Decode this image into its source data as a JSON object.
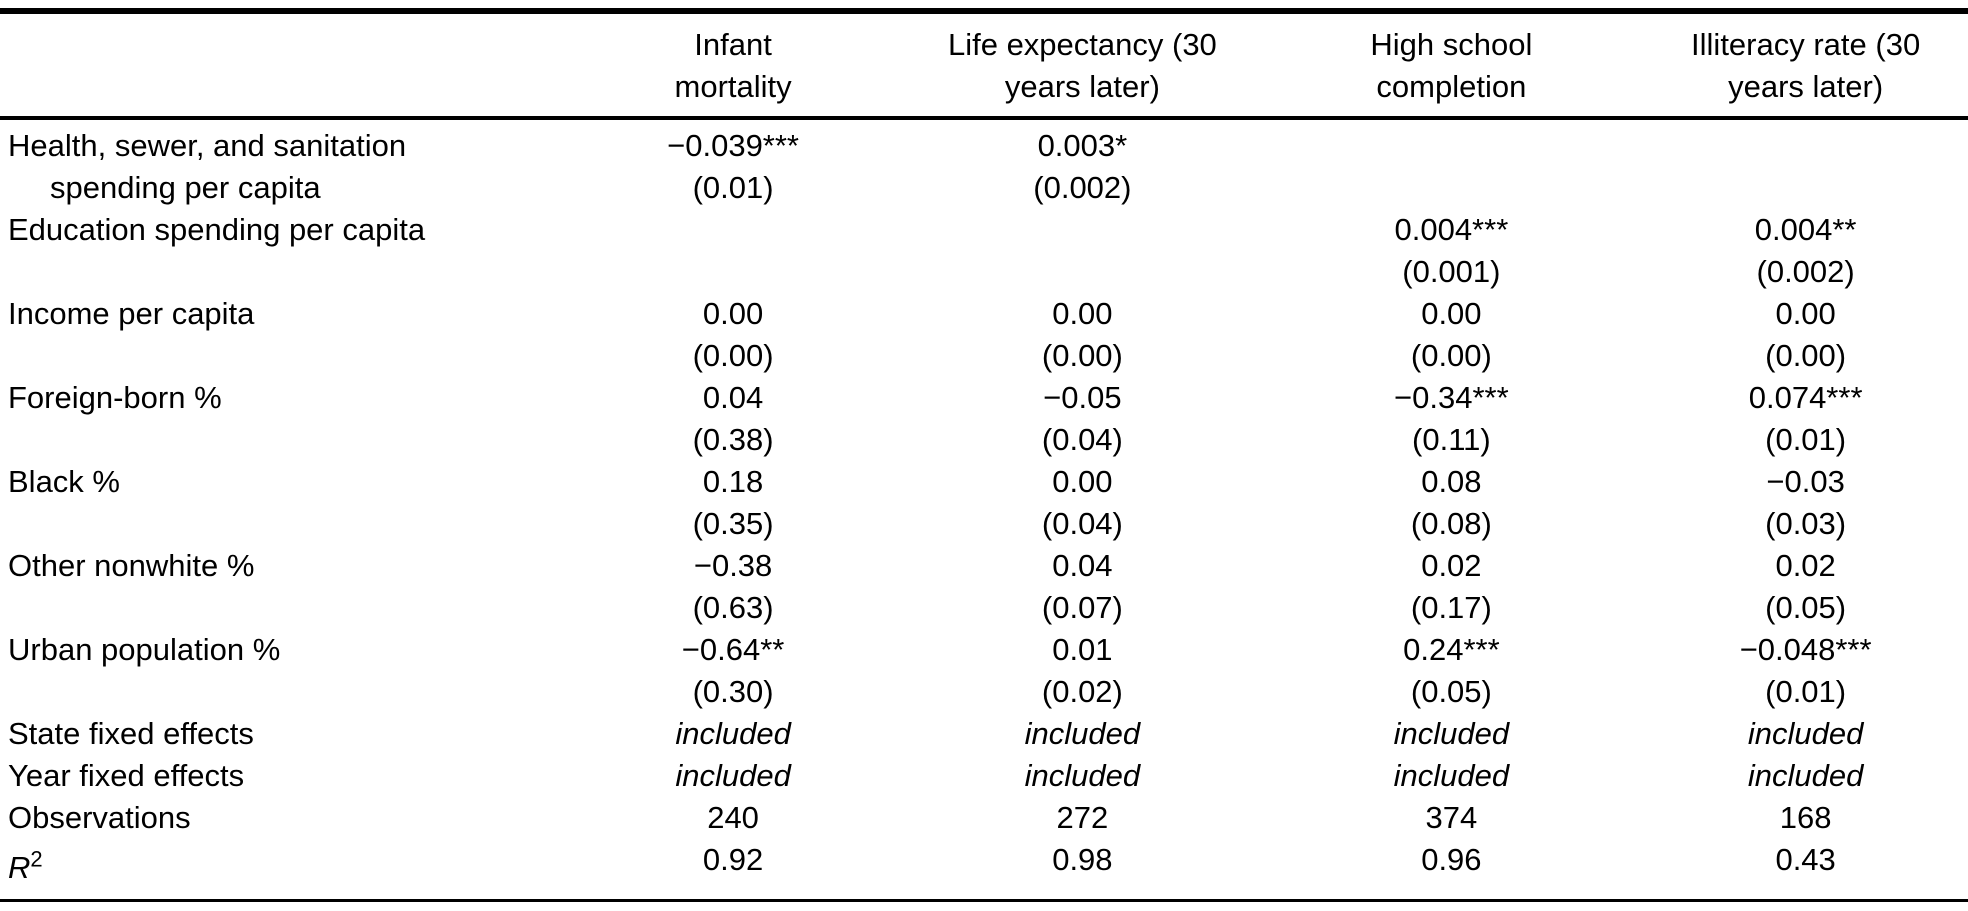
{
  "page": {
    "background": "#ffffff",
    "text_color": "#000000"
  },
  "table": {
    "headers": [
      {
        "line1": "Infant",
        "line2": "mortality"
      },
      {
        "line1": "Life expectancy (30",
        "line2": "years later)"
      },
      {
        "line1": "High school",
        "line2": "completion"
      },
      {
        "line1": "Illiteracy rate (30",
        "line2": "years later)"
      }
    ],
    "rows": [
      {
        "label1": "Health, sewer, and sanitation",
        "label2": "spending per capita",
        "cells": [
          {
            "est": "−0.039***",
            "se": "(0.01)"
          },
          {
            "est": "0.003*",
            "se": "(0.002)"
          },
          {
            "est": "",
            "se": ""
          },
          {
            "est": "",
            "se": ""
          }
        ]
      },
      {
        "label1": "Education spending per capita",
        "label2": "",
        "cells": [
          {
            "est": "",
            "se": ""
          },
          {
            "est": "",
            "se": ""
          },
          {
            "est": "0.004***",
            "se": "(0.001)"
          },
          {
            "est": "0.004**",
            "se": "(0.002)"
          }
        ]
      },
      {
        "label1": "Income per capita",
        "label2": "",
        "cells": [
          {
            "est": "0.00",
            "se": "(0.00)"
          },
          {
            "est": "0.00",
            "se": "(0.00)"
          },
          {
            "est": "0.00",
            "se": "(0.00)"
          },
          {
            "est": "0.00",
            "se": "(0.00)"
          }
        ]
      },
      {
        "label1": "Foreign-born %",
        "label2": "",
        "cells": [
          {
            "est": "0.04",
            "se": "(0.38)"
          },
          {
            "est": "−0.05",
            "se": "(0.04)"
          },
          {
            "est": "−0.34***",
            "se": "(0.11)"
          },
          {
            "est": "0.074***",
            "se": "(0.01)"
          }
        ]
      },
      {
        "label1": "Black %",
        "label2": "",
        "cells": [
          {
            "est": "0.18",
            "se": "(0.35)"
          },
          {
            "est": "0.00",
            "se": "(0.04)"
          },
          {
            "est": "0.08",
            "se": "(0.08)"
          },
          {
            "est": "−0.03",
            "se": "(0.03)"
          }
        ]
      },
      {
        "label1": "Other nonwhite %",
        "label2": "",
        "cells": [
          {
            "est": "−0.38",
            "se": "(0.63)"
          },
          {
            "est": "0.04",
            "se": "(0.07)"
          },
          {
            "est": "0.02",
            "se": "(0.17)"
          },
          {
            "est": "0.02",
            "se": "(0.05)"
          }
        ]
      },
      {
        "label1": "Urban population %",
        "label2": "",
        "cells": [
          {
            "est": "−0.64**",
            "se": "(0.30)"
          },
          {
            "est": "0.01",
            "se": "(0.02)"
          },
          {
            "est": "0.24***",
            "se": "(0.05)"
          },
          {
            "est": "−0.048***",
            "se": "(0.01)"
          }
        ]
      }
    ],
    "summary": [
      {
        "label": "State fixed effects",
        "values": [
          "included",
          "included",
          "included",
          "included"
        ]
      },
      {
        "label": "Year fixed effects",
        "values": [
          "included",
          "included",
          "included",
          "included"
        ]
      },
      {
        "label": "Observations",
        "values": [
          "240",
          "272",
          "374",
          "168"
        ]
      },
      {
        "label": "R",
        "label_sup": "2",
        "values": [
          "0.92",
          "0.98",
          "0.96",
          "0.43"
        ]
      }
    ]
  }
}
